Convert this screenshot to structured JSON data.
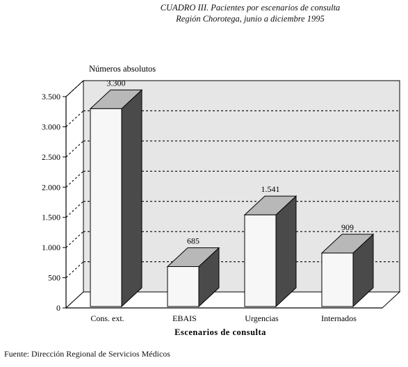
{
  "header": {
    "title": "CUADRO III. Pacientes por escenarios de consulta",
    "subtitle": "Región Chorotega, junio a diciembre 1995"
  },
  "chart_data": {
    "type": "bar",
    "title": "CUADRO III. Pacientes por escenarios de consulta",
    "subtitle": "Región Chorotega, junio a diciembre 1995",
    "xlabel": "Escenarios de consulta",
    "ylabel": "Números absolutos",
    "categories": [
      "Cons. ext.",
      "EBAIS",
      "Urgencias",
      "Internados"
    ],
    "values": [
      3300,
      685,
      1541,
      909
    ],
    "value_labels": [
      "3.300",
      "685",
      "1.541",
      "909"
    ],
    "ylim": [
      0,
      3500
    ],
    "yticks": [
      0,
      500,
      1000,
      1500,
      2000,
      2500,
      3000,
      3500
    ],
    "ytick_labels": [
      "0",
      "500",
      "1.000",
      "1.500",
      "2.000",
      "2.500",
      "3.000",
      "3.500"
    ],
    "grid": true,
    "three_d": true,
    "colors": {
      "bar_front": "#f7f7f7",
      "bar_side": "#4a4a4a",
      "bar_top": "#b8b8b8",
      "back_wall": "#e6e6e6",
      "side_wall": "#ffffff",
      "grid": "#000000"
    }
  },
  "footer": {
    "source": "Fuente: Dirección Regional de Servicios Médicos"
  }
}
